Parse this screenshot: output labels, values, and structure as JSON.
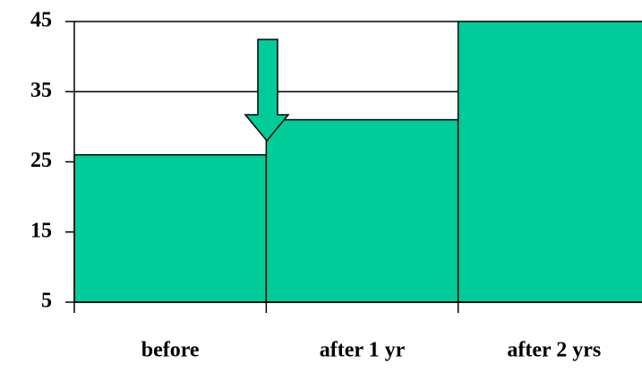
{
  "chart_data": {
    "type": "bar",
    "categories": [
      "before",
      "after 1 yr",
      "after 2 yrs"
    ],
    "values": [
      26,
      31,
      45
    ],
    "color": "#00cc99",
    "ylim": [
      5,
      45
    ],
    "yticks": [
      5,
      15,
      25,
      35,
      45
    ],
    "grid": true
  }
}
